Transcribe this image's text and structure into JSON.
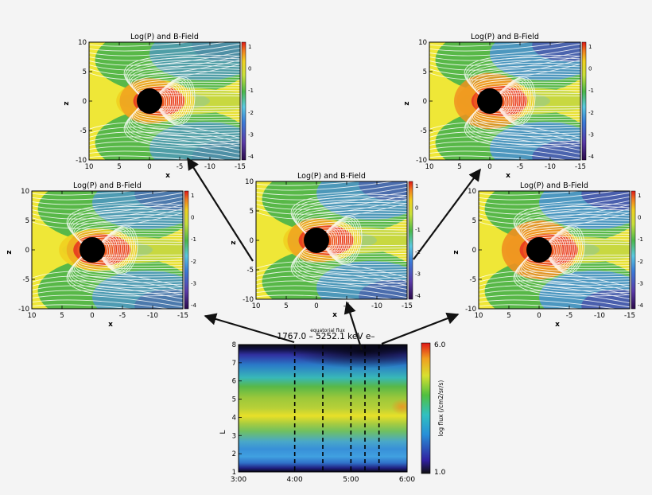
{
  "chart_data": [
    {
      "type": "heatmap",
      "id": "panel-top-left",
      "title": "Log(P) and B-Field",
      "xlabel": "x",
      "ylabel": "z",
      "xlim": [
        10,
        -15
      ],
      "ylim": [
        -10,
        10
      ],
      "xticks": [
        10,
        5,
        0,
        -5,
        -10,
        -15
      ],
      "yticks": [
        10,
        5,
        0,
        -5,
        -10
      ],
      "colorbar": {
        "ticks": [
          1,
          0,
          -1,
          -2,
          -3,
          -4
        ]
      },
      "params": {
        "rings": [
          0.55,
          0.6,
          0.45
        ],
        "blue": 0.15
      }
    },
    {
      "type": "heatmap",
      "id": "panel-top-right",
      "title": "Log(P) and B-Field",
      "xlabel": "x",
      "ylabel": "z",
      "xlim": [
        10,
        -15
      ],
      "ylim": [
        -10,
        10
      ],
      "xticks": [
        10,
        5,
        0,
        -5,
        -10,
        -15
      ],
      "yticks": [
        10,
        5,
        0,
        -5,
        -10
      ],
      "colorbar": {
        "ticks": [
          1,
          0,
          -1,
          -2,
          -3,
          -4
        ]
      },
      "params": {
        "rings": [
          0.9,
          0.8,
          0.75
        ],
        "blue": 0.55
      }
    },
    {
      "type": "heatmap",
      "id": "panel-mid-left",
      "title": "Log(P) and B-Field",
      "xlabel": "x",
      "ylabel": "z",
      "xlim": [
        10,
        -15
      ],
      "ylim": [
        -10,
        10
      ],
      "xticks": [
        10,
        5,
        0,
        -5,
        -10,
        -15
      ],
      "yticks": [
        10,
        5,
        0,
        -5,
        -10
      ],
      "colorbar": {
        "ticks": [
          1,
          0,
          -1,
          -2,
          -3,
          -4
        ]
      },
      "params": {
        "rings": [
          0.3,
          0.85,
          0.55
        ],
        "blue": 0.35
      }
    },
    {
      "type": "heatmap",
      "id": "panel-center",
      "title": "Log(P) and B-Field",
      "xlabel": "x",
      "ylabel": "z",
      "xlim": [
        10,
        -15
      ],
      "ylim": [
        -10,
        10
      ],
      "xticks": [
        10,
        5,
        0,
        -5,
        -10,
        -15
      ],
      "yticks": [
        10,
        5,
        0,
        -5,
        -10
      ],
      "colorbar": {
        "ticks": [
          1,
          0,
          -1,
          -2,
          -3,
          -4
        ]
      },
      "params": {
        "rings": [
          0.5,
          0.75,
          0.5
        ],
        "blue": 0.45
      }
    },
    {
      "type": "heatmap",
      "id": "panel-mid-right",
      "title": "Log(P) and B-Field",
      "xlabel": "x",
      "ylabel": "z",
      "xlim": [
        10,
        -15
      ],
      "ylim": [
        -10,
        10
      ],
      "xticks": [
        10,
        5,
        0,
        -5,
        -10,
        -15
      ],
      "yticks": [
        10,
        5,
        0,
        -5,
        -10
      ],
      "colorbar": {
        "ticks": [
          1,
          0,
          -1,
          -2,
          -3,
          -4
        ]
      },
      "params": {
        "rings": [
          1.0,
          0.9,
          0.7
        ],
        "blue": 0.6
      }
    },
    {
      "type": "heatmap",
      "id": "flux-panel",
      "title": "1767.0 – 5252.1 keV e–",
      "subtitle": "equatorial flux",
      "xlabel": "",
      "ylabel": "L",
      "x_ticks": [
        "3:00",
        "4:00",
        "5:00",
        "6:00"
      ],
      "xlim": [
        "3:00",
        "6:00"
      ],
      "ylim": [
        1,
        8
      ],
      "yticks": [
        1,
        2,
        3,
        4,
        5,
        6,
        7,
        8
      ],
      "colorbar": {
        "label": "log flux (/cm2/sr/s)",
        "min": 1.0,
        "max": 6.0,
        "tick_labels": [
          "6.0",
          "1.0"
        ]
      },
      "dashed_times": [
        "4:00",
        "4:30",
        "5:00",
        "5:15",
        "5:30"
      ]
    }
  ],
  "colors": {
    "arrow": "#111111",
    "field_line": "#ffffff",
    "planet": "#000000"
  }
}
